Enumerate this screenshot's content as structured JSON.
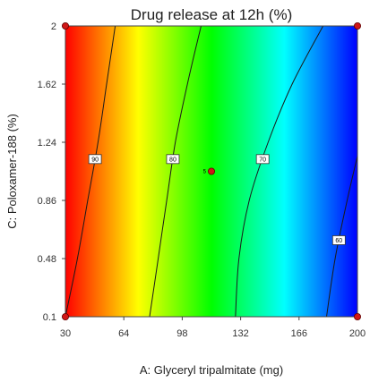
{
  "chart_data": {
    "type": "heatmap",
    "subtype": "contour",
    "title": "Drug release at 12h (%)",
    "xlabel": "A: Glyceryl tripalmitate (mg)",
    "ylabel": "C: Poloxamer-188 (%)",
    "xlim": [
      30,
      200
    ],
    "ylim": [
      0.1,
      2
    ],
    "x_ticks": [
      "30",
      "64",
      "98",
      "132",
      "166",
      "200"
    ],
    "y_ticks": [
      "0.1",
      "0.48",
      "0.86",
      "1.24",
      "1.62",
      "2"
    ],
    "grid": false,
    "color_scale": {
      "low_value": 55,
      "high_value": 100,
      "low_color": "#0000ff",
      "high_color": "#ff0000",
      "stops": [
        "#ff0000",
        "#ffff00",
        "#00ff00",
        "#00ffff",
        "#0000ff"
      ]
    },
    "contours": [
      {
        "level": "90",
        "points": [
          [
            30,
            0.1
          ],
          [
            37,
            0.48
          ],
          [
            43,
            0.86
          ],
          [
            49,
            1.24
          ],
          [
            54,
            1.62
          ],
          [
            59,
            2
          ]
        ]
      },
      {
        "level": "80",
        "points": [
          [
            79,
            0.1
          ],
          [
            84,
            0.48
          ],
          [
            89,
            0.86
          ],
          [
            94,
            1.24
          ],
          [
            101,
            1.62
          ],
          [
            109,
            2
          ]
        ]
      },
      {
        "level": "70",
        "points": [
          [
            129,
            0.1
          ],
          [
            131,
            0.48
          ],
          [
            137,
            0.86
          ],
          [
            148,
            1.24
          ],
          [
            162,
            1.62
          ],
          [
            180,
            2
          ]
        ]
      },
      {
        "level": "60",
        "points": [
          [
            182,
            0.1
          ],
          [
            187,
            0.48
          ],
          [
            194,
            0.86
          ],
          [
            200,
            1.15
          ]
        ]
      }
    ],
    "design_points": [
      {
        "x": 30,
        "y": 0.1
      },
      {
        "x": 200,
        "y": 0.1
      },
      {
        "x": 30,
        "y": 2
      },
      {
        "x": 200,
        "y": 2
      },
      {
        "x": 115,
        "y": 1.05,
        "label": "5"
      }
    ]
  }
}
